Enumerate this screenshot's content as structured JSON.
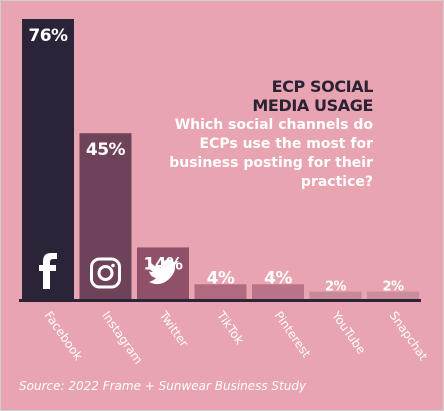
{
  "chart_data": {
    "type": "bar",
    "categories": [
      "Facebook",
      "Instagram",
      "Twitter",
      "TikTok",
      "Pinterest",
      "YouTube",
      "Snapchat"
    ],
    "values": [
      76,
      45,
      14,
      4,
      4,
      2,
      2
    ],
    "value_labels": [
      "76%",
      "45%",
      "14%",
      "4%",
      "4%",
      "2%",
      "2%"
    ],
    "title": "ECP SOCIAL MEDIA USAGE",
    "title_lines": [
      "ECP SOCIAL",
      "MEDIA USAGE"
    ],
    "subtitle": "Which social channels do ECPs use the most for business posting for their practice?",
    "source": "Source: 2022 Frame + Sunwear Business Study",
    "ylim": [
      0,
      76
    ],
    "grid": false,
    "icons": [
      "facebook-icon",
      "instagram-icon",
      "twitter-icon",
      null,
      null,
      null,
      null
    ],
    "colors": {
      "background": "#e8a4b0",
      "bars": [
        "#2b2338",
        "#6e4258",
        "#915069",
        "#b26a81",
        "#ba7389",
        "#c98898",
        "#cc8c9c"
      ],
      "baseline": "#2b2338",
      "title": "#2b2235",
      "text": "#ffffff"
    }
  }
}
